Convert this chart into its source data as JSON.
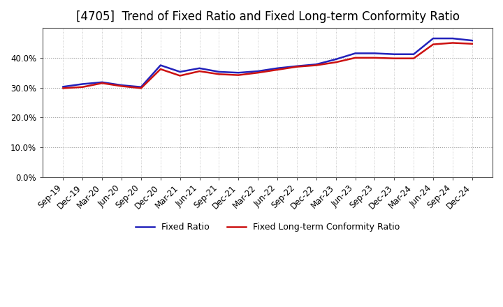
{
  "title": "[4705]  Trend of Fixed Ratio and Fixed Long-term Conformity Ratio",
  "x_labels": [
    "Sep-19",
    "Dec-19",
    "Mar-20",
    "Jun-20",
    "Sep-20",
    "Dec-20",
    "Mar-21",
    "Jun-21",
    "Sep-21",
    "Dec-21",
    "Mar-22",
    "Jun-22",
    "Sep-22",
    "Dec-22",
    "Mar-23",
    "Jun-23",
    "Sep-23",
    "Dec-23",
    "Mar-24",
    "Jun-24",
    "Sep-24",
    "Dec-24"
  ],
  "fixed_ratio": [
    30.3,
    31.2,
    31.8,
    30.8,
    30.2,
    37.5,
    35.3,
    36.5,
    35.3,
    35.0,
    35.5,
    36.5,
    37.2,
    37.8,
    39.5,
    41.5,
    41.5,
    41.2,
    41.2,
    46.5,
    46.5,
    45.8
  ],
  "fixed_lt_ratio": [
    29.8,
    30.2,
    31.5,
    30.5,
    29.8,
    36.2,
    34.0,
    35.5,
    34.5,
    34.2,
    35.0,
    36.0,
    37.0,
    37.5,
    38.5,
    40.0,
    40.0,
    39.8,
    39.8,
    44.5,
    45.0,
    44.7
  ],
  "ylim": [
    0,
    50
  ],
  "yticks": [
    0,
    10,
    20,
    30,
    40
  ],
  "line_color_blue": "#2222bb",
  "line_color_red": "#cc1111",
  "grid_color_h": "#999999",
  "grid_color_v": "#bbbbbb",
  "bg_color": "#ffffff",
  "plot_bg_color": "#ffffff",
  "legend_fixed": "Fixed Ratio",
  "legend_lt": "Fixed Long-term Conformity Ratio",
  "title_fontsize": 12,
  "label_fontsize": 9,
  "tick_fontsize": 8.5,
  "linewidth": 1.8
}
